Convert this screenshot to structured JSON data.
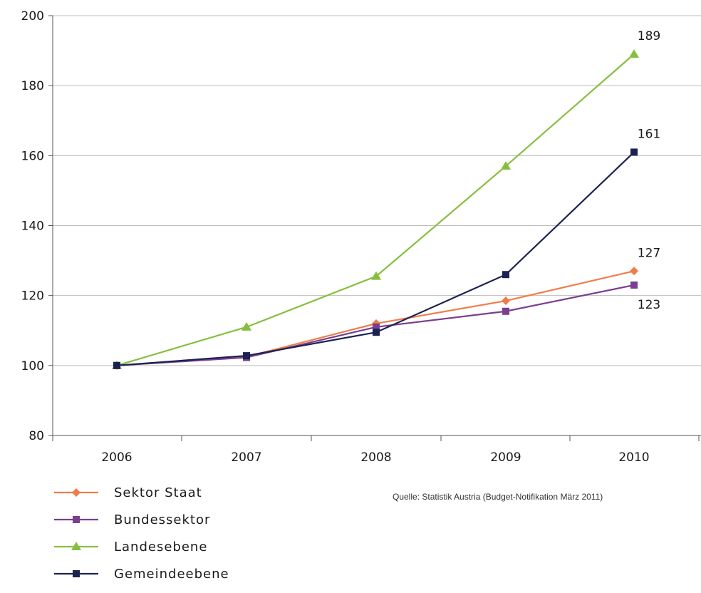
{
  "chart_data": {
    "type": "line",
    "categories": [
      "2006",
      "2007",
      "2008",
      "2009",
      "2010"
    ],
    "ylim": [
      80,
      200
    ],
    "yticks": [
      "80",
      "100",
      "120",
      "140",
      "160",
      "180",
      "200"
    ],
    "grid": true,
    "legend_position": "bottom-left",
    "series": [
      {
        "name": "Sektor Staat",
        "color": "#ef7d4a",
        "marker": "diamond",
        "values": [
          100,
          102.5,
          112,
          118.5,
          127
        ]
      },
      {
        "name": "Bundessektor",
        "color": "#7a3f8f",
        "marker": "square",
        "values": [
          100,
          102.3,
          111,
          115.5,
          123
        ]
      },
      {
        "name": "Landesebene",
        "color": "#86bf3f",
        "marker": "triangle",
        "values": [
          100,
          111,
          125.5,
          157,
          189
        ]
      },
      {
        "name": "Gemeindeebene",
        "color": "#1b2252",
        "marker": "square",
        "values": [
          100,
          102.8,
          109.5,
          126,
          161
        ]
      }
    ],
    "data_labels": [
      {
        "series": 2,
        "index": 4,
        "text": "189",
        "position": "above"
      },
      {
        "series": 3,
        "index": 4,
        "text": "161",
        "position": "above"
      },
      {
        "series": 0,
        "index": 4,
        "text": "127",
        "position": "above"
      },
      {
        "series": 1,
        "index": 4,
        "text": "123",
        "position": "below"
      }
    ]
  },
  "source": "Quelle: Statistik Austria (Budget-Notifikation März 2011)"
}
